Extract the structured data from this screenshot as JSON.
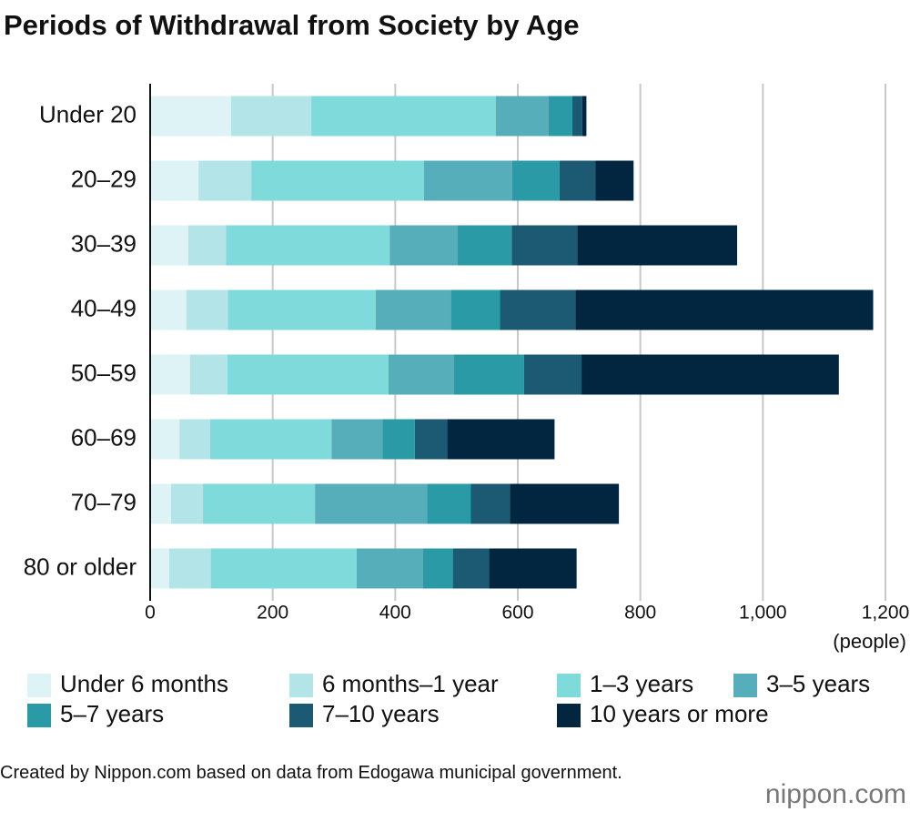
{
  "chart_data": {
    "type": "stacked-barh",
    "title": "Periods of Withdrawal from Society by Age",
    "categories": [
      "Under 20",
      "20–29",
      "30–39",
      "40–49",
      "50–59",
      "60–69",
      "70–79",
      "80 or older"
    ],
    "series": [
      {
        "name": "Under 6 months",
        "color": "#ddf3f5",
        "values": [
          132,
          79,
          62,
          59,
          65,
          48,
          34,
          31
        ]
      },
      {
        "name": "6 months–1 year",
        "color": "#b3e5e8",
        "values": [
          131,
          86,
          62,
          68,
          61,
          50,
          52,
          68
        ]
      },
      {
        "name": "1–3 years",
        "color": "#7fdbdb",
        "values": [
          301,
          282,
          267,
          241,
          263,
          198,
          183,
          238
        ]
      },
      {
        "name": "3–5 years",
        "color": "#57aebb",
        "values": [
          86,
          144,
          111,
          123,
          107,
          83,
          183,
          108
        ]
      },
      {
        "name": "5–7 years",
        "color": "#2a9ba6",
        "values": [
          39,
          77,
          88,
          80,
          114,
          53,
          71,
          49
        ]
      },
      {
        "name": "7–10 years",
        "color": "#1c5a73",
        "values": [
          16,
          59,
          107,
          123,
          94,
          53,
          64,
          59
        ]
      },
      {
        "name": "10 years or more",
        "color": "#032640",
        "values": [
          7,
          62,
          261,
          486,
          420,
          175,
          178,
          143
        ]
      }
    ],
    "xlim": [
      0,
      1200
    ],
    "xticks": [
      0,
      200,
      400,
      600,
      800,
      {
        "value": 1000,
        "label": "1,000"
      },
      {
        "value": 1200,
        "label": "1,200"
      }
    ],
    "x_unit": "(people)",
    "grid": true,
    "source": "Created by Nippon.com based on data from Edogawa municipal government.",
    "logo": "nippon.com"
  }
}
